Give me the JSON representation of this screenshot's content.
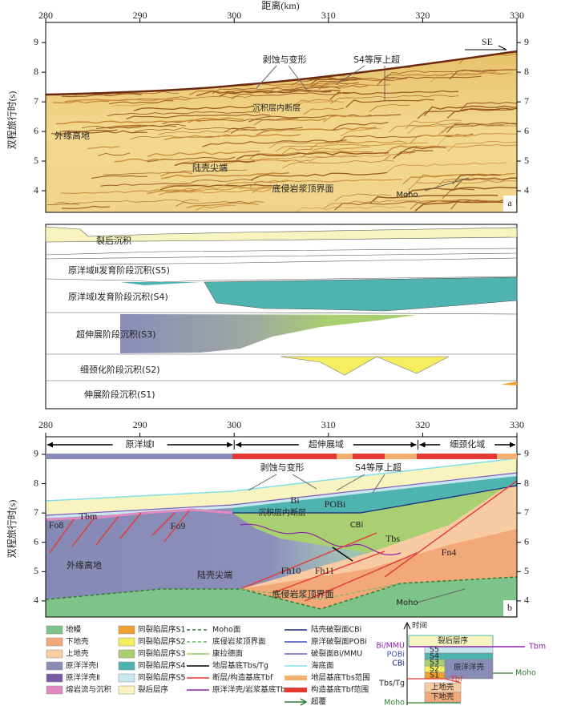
{
  "panel_a": {
    "x_label": "距离(km)",
    "y_label": "双程旅行时(s)",
    "xlim": [
      280,
      330
    ],
    "xticks": [
      280,
      290,
      300,
      310,
      320,
      330
    ],
    "ylim": [
      3.27,
      9.68
    ],
    "yticks": [
      4,
      5,
      6,
      7,
      8,
      9
    ],
    "annotations": [
      "剥蚀与变形",
      "S4等厚上超",
      "沉积层内断层",
      "外缘高地",
      "陆壳尖端",
      "底侵岩浆顶界面",
      "Moho",
      "SE"
    ],
    "panel_label": "a"
  },
  "stages": [
    "裂后沉积",
    "原洋域Ⅱ发育阶段沉积(S5)",
    "原洋域Ⅰ发育阶段沉积(S4)",
    "超伸展阶段沉积(S3)",
    "细颈化阶段沉积(S2)",
    "伸展阶段沉积(S1)"
  ],
  "panel_b": {
    "y_label": "双程旅行时(s)",
    "xlim": [
      280,
      330
    ],
    "xticks": [
      280,
      290,
      300,
      310,
      320,
      330
    ],
    "ylim": [
      3.45,
      9.6
    ],
    "yticks": [
      4,
      5,
      6,
      7,
      8,
      9
    ],
    "domains": [
      {
        "name": "原洋域Ⅰ",
        "range": [
          280,
          300
        ]
      },
      {
        "name": "超伸展域",
        "range": [
          300,
          319.5
        ]
      },
      {
        "name": "细颈化域",
        "range": [
          319.5,
          330
        ]
      }
    ],
    "annotations": [
      "剥蚀与变形",
      "S4等厚上超",
      "Bi",
      "POBi",
      "沉积层内断层",
      "CBi",
      "Tbm",
      "Fo8",
      "Fo9",
      "外缘高地",
      "Tbs",
      "Fn4",
      "Fh10",
      "Fh11",
      "陆壳尖端",
      "底侵岩浆顶界面",
      "Moho"
    ],
    "panel_label": "b"
  },
  "legend": [
    {
      "name": "地幔",
      "color": "#7dc38a",
      "kind": "fill"
    },
    {
      "name": "下地壳",
      "color": "#f2a878",
      "kind": "fill"
    },
    {
      "name": "上地壳",
      "color": "#f9cba2",
      "kind": "fill"
    },
    {
      "name": "原洋洋壳Ⅰ",
      "color": "#8a8cb8",
      "kind": "fill"
    },
    {
      "name": "原洋洋壳Ⅱ",
      "color": "#7b5aa6",
      "kind": "fill"
    },
    {
      "name": "熔岩流与沉积",
      "color": "#e08ac0",
      "kind": "fill"
    },
    {
      "name": "同裂陷层序S1",
      "color": "#f0a030",
      "kind": "fill"
    },
    {
      "name": "同裂陷层序S2",
      "color": "#f5ef60",
      "kind": "fill"
    },
    {
      "name": "同裂陷层序S3",
      "color": "#a8cf70",
      "kind": "fill"
    },
    {
      "name": "同裂陷层序S4",
      "color": "#4fb3b0",
      "kind": "fill"
    },
    {
      "name": "同裂陷层序S5",
      "color": "#c8e8f0",
      "kind": "fill"
    },
    {
      "name": "裂后层序",
      "color": "#f8f4c0",
      "kind": "fill"
    },
    {
      "name": "Moho面",
      "color": "#2e7d32",
      "kind": "dashed"
    },
    {
      "name": "底侵岩浆顶界面",
      "color": "#66bb6a",
      "kind": "dashed"
    },
    {
      "name": "康拉德面",
      "color": "#9ccc65",
      "kind": "line"
    },
    {
      "name": "地层基底Tbs/Tg",
      "color": "#000000",
      "kind": "line"
    },
    {
      "name": "断层/构造基底Tbf",
      "color": "#e53935",
      "kind": "line"
    },
    {
      "name": "原洋洋壳/岩浆基底Tbm",
      "color": "#8e24aa",
      "kind": "line"
    },
    {
      "name": "陆壳破裂面CBi",
      "color": "#1a237e",
      "kind": "line"
    },
    {
      "name": "原洋破裂面POBi",
      "color": "#3f51b5",
      "kind": "line"
    },
    {
      "name": "破裂面Bi/MMU",
      "color": "#7e57c2",
      "kind": "line"
    },
    {
      "name": "海底面",
      "color": "#80deea",
      "kind": "line"
    },
    {
      "name": "地层基底Tbs范围",
      "color": "#f5b070",
      "kind": "bar"
    },
    {
      "name": "构造基底Tbf范围",
      "color": "#e53935",
      "kind": "bar"
    },
    {
      "name": "超覆",
      "color": "#2e7d32",
      "kind": "arrow"
    }
  ],
  "inset": {
    "time": "时间",
    "layers": [
      "裂后层序",
      "S5",
      "S4",
      "S3",
      "S2",
      "S1"
    ],
    "left_labels": [
      "Bi/MMU",
      "POBi",
      "CBi",
      "Tbs/Tg",
      "Moho"
    ],
    "right_labels": [
      "Tbm",
      "原洋洋壳",
      "Tbf",
      "Moho"
    ],
    "crust": [
      "上地壳",
      "下地壳"
    ]
  }
}
